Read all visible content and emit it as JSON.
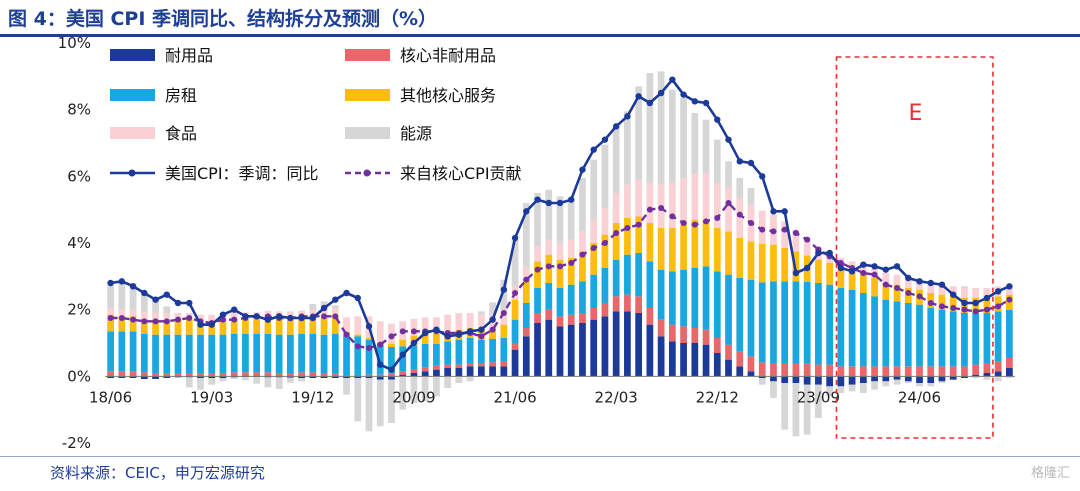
{
  "title": "图 4：美国 CPI 季调同比、结构拆分及预测（%）",
  "source": "资料来源：CEIC，申万宏源研究",
  "watermark": "格隆汇",
  "forecast_label": "E",
  "colors": {
    "durables": "#1b3a9a",
    "core_nondurables": "#e8676a",
    "rent": "#1aa6df",
    "other_core_services": "#fdbd10",
    "food": "#f9d0d3",
    "energy": "#d6d6d6",
    "headline": "#1b3a9a",
    "core_contribution": "#7030a0",
    "forecast_box": "#e83030",
    "title": "#1f3f94"
  },
  "chart_data": {
    "type": "bar",
    "stacked": true,
    "ylim": [
      -2,
      10
    ],
    "yticks": [
      "-2%",
      "0%",
      "2%",
      "4%",
      "6%",
      "8%",
      "10%"
    ],
    "x_tick_labels": [
      "18/06",
      "19/03",
      "19/12",
      "20/09",
      "21/06",
      "22/03",
      "22/12",
      "23/09",
      "24/06"
    ],
    "x_tick_indices": [
      0,
      9,
      18,
      27,
      36,
      45,
      54,
      63,
      72
    ],
    "start_month": "2018-06",
    "forecast_start_month": "2023-12",
    "forecast_end_month": "2024-12",
    "legend": [
      "耐用品",
      "核心非耐用品",
      "房租",
      "其他核心服务",
      "食品",
      "能源",
      "美国CPI：季调：同比",
      "来自核心CPI贡献"
    ],
    "series": [
      {
        "name": "耐用品",
        "key": "durables",
        "values": [
          -0.05,
          -0.05,
          -0.05,
          -0.08,
          -0.08,
          -0.05,
          -0.03,
          -0.03,
          -0.05,
          -0.05,
          -0.05,
          -0.03,
          -0.02,
          -0.02,
          -0.03,
          -0.03,
          -0.04,
          -0.05,
          -0.05,
          -0.05,
          -0.05,
          -0.05,
          -0.05,
          -0.05,
          -0.1,
          -0.1,
          0.05,
          0.1,
          0.15,
          0.2,
          0.25,
          0.25,
          0.3,
          0.3,
          0.3,
          0.3,
          0.8,
          1.2,
          1.6,
          1.7,
          1.5,
          1.55,
          1.6,
          1.7,
          1.8,
          1.95,
          1.95,
          1.9,
          1.55,
          1.2,
          1.05,
          1.0,
          1.0,
          0.95,
          0.7,
          0.5,
          0.3,
          0.15,
          -0.05,
          -0.15,
          -0.2,
          -0.2,
          -0.25,
          -0.25,
          -0.3,
          -0.3,
          -0.25,
          -0.2,
          -0.15,
          -0.15,
          -0.1,
          -0.15,
          -0.2,
          -0.2,
          -0.15,
          -0.1,
          -0.05,
          0.05,
          0.1,
          0.15,
          0.25
        ]
      },
      {
        "name": "核心非耐用品",
        "key": "core_nondurables",
        "values": [
          0.15,
          0.15,
          0.15,
          0.12,
          0.1,
          0.1,
          0.1,
          0.1,
          0.1,
          0.1,
          0.1,
          0.12,
          0.12,
          0.12,
          0.12,
          0.1,
          0.1,
          0.12,
          0.12,
          0.1,
          0.08,
          0.02,
          0.0,
          0.05,
          0.05,
          0.08,
          0.1,
          0.12,
          0.12,
          0.12,
          0.1,
          0.1,
          0.1,
          0.1,
          0.12,
          0.15,
          0.2,
          0.25,
          0.3,
          0.3,
          0.3,
          0.3,
          0.3,
          0.35,
          0.4,
          0.45,
          0.5,
          0.5,
          0.5,
          0.5,
          0.5,
          0.5,
          0.45,
          0.45,
          0.45,
          0.45,
          0.45,
          0.45,
          0.42,
          0.4,
          0.4,
          0.4,
          0.38,
          0.35,
          0.35,
          0.3,
          0.3,
          0.3,
          0.3,
          0.3,
          0.3,
          0.3,
          0.3,
          0.3,
          0.3,
          0.3,
          0.3,
          0.3,
          0.3,
          0.3,
          0.3
        ]
      },
      {
        "name": "房租",
        "key": "rent",
        "values": [
          1.2,
          1.2,
          1.2,
          1.15,
          1.15,
          1.15,
          1.15,
          1.15,
          1.15,
          1.15,
          1.15,
          1.15,
          1.15,
          1.15,
          1.15,
          1.15,
          1.15,
          1.15,
          1.15,
          1.15,
          1.2,
          1.2,
          1.2,
          1.05,
          0.9,
          0.8,
          0.75,
          0.7,
          0.7,
          0.65,
          0.7,
          0.75,
          0.75,
          0.7,
          0.7,
          0.7,
          0.7,
          0.75,
          0.75,
          0.8,
          0.85,
          0.9,
          0.95,
          1.0,
          1.05,
          1.1,
          1.2,
          1.3,
          1.4,
          1.5,
          1.6,
          1.7,
          1.8,
          1.9,
          2.0,
          2.1,
          2.2,
          2.3,
          2.4,
          2.45,
          2.45,
          2.45,
          2.45,
          2.45,
          2.4,
          2.35,
          2.3,
          2.2,
          2.1,
          2.0,
          1.95,
          1.9,
          1.85,
          1.75,
          1.7,
          1.65,
          1.6,
          1.55,
          1.5,
          1.5,
          1.45
        ]
      },
      {
        "name": "其他核心服务",
        "key": "other_core_services",
        "values": [
          0.5,
          0.45,
          0.45,
          0.45,
          0.45,
          0.45,
          0.45,
          0.45,
          0.4,
          0.4,
          0.45,
          0.45,
          0.45,
          0.45,
          0.5,
          0.5,
          0.5,
          0.5,
          0.5,
          0.5,
          0.5,
          0.1,
          0.05,
          0.05,
          0.05,
          0.1,
          0.2,
          0.3,
          0.3,
          0.3,
          0.3,
          0.3,
          0.3,
          0.3,
          0.3,
          0.4,
          0.6,
          0.7,
          0.8,
          0.85,
          0.85,
          0.8,
          0.9,
          0.95,
          1.0,
          1.1,
          1.1,
          1.1,
          1.15,
          1.25,
          1.3,
          1.35,
          1.45,
          1.4,
          1.3,
          1.3,
          1.2,
          1.15,
          1.15,
          1.1,
          1.0,
          0.9,
          0.8,
          0.7,
          0.65,
          0.6,
          0.55,
          0.55,
          0.55,
          0.5,
          0.5,
          0.45,
          0.45,
          0.45,
          0.45,
          0.45,
          0.45,
          0.45,
          0.45,
          0.45,
          0.45
        ]
      },
      {
        "name": "食品",
        "key": "food",
        "values": [
          0.2,
          0.2,
          0.2,
          0.2,
          0.2,
          0.2,
          0.2,
          0.2,
          0.2,
          0.2,
          0.2,
          0.2,
          0.2,
          0.2,
          0.2,
          0.2,
          0.2,
          0.2,
          0.2,
          0.2,
          0.25,
          0.45,
          0.55,
          0.65,
          0.65,
          0.6,
          0.55,
          0.5,
          0.5,
          0.5,
          0.5,
          0.5,
          0.45,
          0.45,
          0.45,
          0.45,
          0.4,
          0.4,
          0.45,
          0.45,
          0.5,
          0.55,
          0.6,
          0.7,
          0.8,
          0.9,
          1.0,
          1.1,
          1.2,
          1.3,
          1.35,
          1.4,
          1.4,
          1.4,
          1.35,
          1.3,
          1.2,
          1.1,
          1.0,
          0.9,
          0.8,
          0.65,
          0.5,
          0.4,
          0.35,
          0.3,
          0.3,
          0.3,
          0.3,
          0.3,
          0.3,
          0.3,
          0.3,
          0.3,
          0.3,
          0.3,
          0.3,
          0.3,
          0.3,
          0.3,
          0.3
        ]
      },
      {
        "name": "能源",
        "key": "energy",
        "values": [
          0.8,
          0.85,
          0.8,
          0.6,
          0.4,
          0.2,
          0.0,
          -0.3,
          -0.35,
          -0.2,
          -0.1,
          -0.05,
          -0.1,
          -0.2,
          -0.3,
          -0.35,
          -0.15,
          -0.1,
          0.2,
          0.3,
          0.1,
          -0.5,
          -1.3,
          -1.6,
          -1.4,
          -1.3,
          -1.0,
          -0.8,
          -0.75,
          -0.6,
          -0.35,
          -0.2,
          -0.15,
          0.1,
          0.35,
          0.9,
          1.4,
          1.9,
          1.6,
          1.5,
          1.4,
          1.2,
          1.6,
          1.8,
          1.9,
          2.0,
          2.2,
          2.8,
          3.3,
          3.4,
          2.8,
          2.4,
          1.8,
          1.6,
          1.3,
          0.8,
          0.6,
          0.5,
          -0.2,
          -0.5,
          -1.4,
          -1.6,
          -1.5,
          -1.0,
          -0.3,
          -0.2,
          -0.2,
          -0.3,
          -0.25,
          -0.15,
          -0.15,
          -0.05,
          -0.1,
          -0.1,
          -0.05,
          0.0,
          0.05,
          -0.05,
          -0.1,
          -0.15,
          -0.05
        ]
      },
      {
        "name": "美国CPI：季调：同比",
        "key": "headline",
        "type": "line",
        "values": [
          2.8,
          2.85,
          2.7,
          2.5,
          2.3,
          2.45,
          2.2,
          2.2,
          1.55,
          1.55,
          1.85,
          2.0,
          1.8,
          1.8,
          1.7,
          1.8,
          1.75,
          1.75,
          1.75,
          2.05,
          2.3,
          2.5,
          2.35,
          1.5,
          0.35,
          0.2,
          0.65,
          1.0,
          1.3,
          1.4,
          1.2,
          1.25,
          1.35,
          1.4,
          1.7,
          2.6,
          4.15,
          4.95,
          5.3,
          5.2,
          5.2,
          5.3,
          6.2,
          6.8,
          7.1,
          7.5,
          7.8,
          8.4,
          8.2,
          8.5,
          8.9,
          8.45,
          8.25,
          8.2,
          7.7,
          7.1,
          6.45,
          6.4,
          6.0,
          4.95,
          4.95,
          3.1,
          3.25,
          3.7,
          3.7,
          3.25,
          3.15,
          3.35,
          3.3,
          3.2,
          3.3,
          2.95,
          2.85,
          2.8,
          2.75,
          2.45,
          2.2,
          2.2,
          2.35,
          2.55,
          2.7
        ]
      },
      {
        "name": "来自核心CPI贡献",
        "key": "core_contribution",
        "type": "line",
        "values": [
          1.75,
          1.75,
          1.7,
          1.65,
          1.65,
          1.65,
          1.7,
          1.75,
          1.65,
          1.6,
          1.7,
          1.7,
          1.75,
          1.8,
          1.8,
          1.75,
          1.75,
          1.8,
          1.8,
          1.8,
          1.8,
          1.25,
          0.9,
          0.85,
          0.95,
          1.2,
          1.35,
          1.35,
          1.35,
          1.35,
          1.3,
          1.3,
          1.3,
          1.2,
          1.4,
          1.9,
          2.5,
          2.9,
          3.2,
          3.3,
          3.3,
          3.4,
          3.65,
          3.85,
          4.0,
          4.3,
          4.45,
          4.55,
          5.0,
          5.05,
          4.8,
          4.6,
          4.55,
          4.65,
          4.75,
          5.2,
          4.85,
          4.6,
          4.4,
          4.35,
          4.4,
          4.3,
          4.1,
          3.8,
          3.6,
          3.4,
          3.25,
          3.1,
          3.05,
          2.75,
          2.65,
          2.5,
          2.4,
          2.2,
          2.1,
          2.05,
          2.0,
          1.95,
          2.0,
          2.1,
          2.3
        ]
      }
    ]
  }
}
